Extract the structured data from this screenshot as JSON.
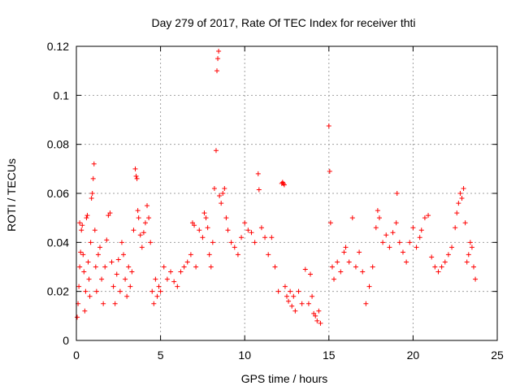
{
  "chart_data": {
    "type": "scatter",
    "title": "Day 279 of 2017, Rate Of TEC Index for receiver thti",
    "xlabel": "GPS time / hours",
    "ylabel": "ROTI / TECUs",
    "xlim": [
      0,
      25
    ],
    "ylim": [
      0,
      0.12
    ],
    "xticks": [
      0,
      5,
      10,
      15,
      20,
      25
    ],
    "xtick_labels": [
      "0",
      "5",
      "10",
      "15",
      "20",
      "25"
    ],
    "yticks": [
      0,
      0.02,
      0.04,
      0.06,
      0.08,
      0.1,
      0.12
    ],
    "ytick_labels": [
      "0",
      "0.02",
      "0.04",
      "0.06",
      "0.08",
      "0.1",
      "0.12"
    ],
    "grid": true,
    "marker": "+",
    "color": "#ff0000",
    "series": [
      {
        "name": "ROTI",
        "points": [
          [
            0.05,
            0.0095
          ],
          [
            0.1,
            0.015
          ],
          [
            0.15,
            0.022
          ],
          [
            0.2,
            0.03
          ],
          [
            0.25,
            0.036
          ],
          [
            0.3,
            0.045
          ],
          [
            0.35,
            0.047
          ],
          [
            0.2,
            0.048
          ],
          [
            0.4,
            0.035
          ],
          [
            0.45,
            0.028
          ],
          [
            0.5,
            0.012
          ],
          [
            0.55,
            0.02
          ],
          [
            0.6,
            0.05
          ],
          [
            0.65,
            0.051
          ],
          [
            0.7,
            0.032
          ],
          [
            0.75,
            0.025
          ],
          [
            0.8,
            0.018
          ],
          [
            0.85,
            0.04
          ],
          [
            0.9,
            0.058
          ],
          [
            0.95,
            0.06
          ],
          [
            1.0,
            0.066
          ],
          [
            1.05,
            0.072
          ],
          [
            1.1,
            0.045
          ],
          [
            1.15,
            0.03
          ],
          [
            1.2,
            0.02
          ],
          [
            1.3,
            0.035
          ],
          [
            1.4,
            0.038
          ],
          [
            1.5,
            0.025
          ],
          [
            1.6,
            0.015
          ],
          [
            1.7,
            0.03
          ],
          [
            1.8,
            0.041
          ],
          [
            1.9,
            0.051
          ],
          [
            2.0,
            0.052
          ],
          [
            2.1,
            0.032
          ],
          [
            2.2,
            0.022
          ],
          [
            2.3,
            0.015
          ],
          [
            2.4,
            0.027
          ],
          [
            2.5,
            0.033
          ],
          [
            2.6,
            0.02
          ],
          [
            2.7,
            0.04
          ],
          [
            2.8,
            0.035
          ],
          [
            2.9,
            0.025
          ],
          [
            3.0,
            0.018
          ],
          [
            3.1,
            0.03
          ],
          [
            3.2,
            0.022
          ],
          [
            3.3,
            0.028
          ],
          [
            3.4,
            0.045
          ],
          [
            3.5,
            0.07
          ],
          [
            3.55,
            0.067
          ],
          [
            3.6,
            0.066
          ],
          [
            3.65,
            0.053
          ],
          [
            3.7,
            0.05
          ],
          [
            3.8,
            0.043
          ],
          [
            3.9,
            0.038
          ],
          [
            4.0,
            0.044
          ],
          [
            4.1,
            0.048
          ],
          [
            4.2,
            0.055
          ],
          [
            4.3,
            0.05
          ],
          [
            4.4,
            0.04
          ],
          [
            4.5,
            0.02
          ],
          [
            4.6,
            0.015
          ],
          [
            4.7,
            0.025
          ],
          [
            4.8,
            0.018
          ],
          [
            4.9,
            0.022
          ],
          [
            5.0,
            0.02
          ],
          [
            5.2,
            0.03
          ],
          [
            5.4,
            0.025
          ],
          [
            5.6,
            0.028
          ],
          [
            5.8,
            0.024
          ],
          [
            6.0,
            0.022
          ],
          [
            6.2,
            0.028
          ],
          [
            6.4,
            0.03
          ],
          [
            6.6,
            0.032
          ],
          [
            6.8,
            0.035
          ],
          [
            6.9,
            0.048
          ],
          [
            7.0,
            0.047
          ],
          [
            7.1,
            0.03
          ],
          [
            7.3,
            0.045
          ],
          [
            7.5,
            0.042
          ],
          [
            7.6,
            0.052
          ],
          [
            7.7,
            0.05
          ],
          [
            7.8,
            0.046
          ],
          [
            7.9,
            0.035
          ],
          [
            8.0,
            0.03
          ],
          [
            8.1,
            0.04
          ],
          [
            8.2,
            0.062
          ],
          [
            8.3,
            0.0775
          ],
          [
            8.35,
            0.11
          ],
          [
            8.4,
            0.115
          ],
          [
            8.45,
            0.118
          ],
          [
            8.5,
            0.059
          ],
          [
            8.6,
            0.056
          ],
          [
            8.7,
            0.06
          ],
          [
            8.8,
            0.062
          ],
          [
            8.9,
            0.05
          ],
          [
            9.0,
            0.045
          ],
          [
            9.2,
            0.04
          ],
          [
            9.4,
            0.038
          ],
          [
            9.6,
            0.035
          ],
          [
            9.8,
            0.042
          ],
          [
            10.0,
            0.048
          ],
          [
            10.2,
            0.045
          ],
          [
            10.4,
            0.044
          ],
          [
            10.6,
            0.04
          ],
          [
            10.8,
            0.068
          ],
          [
            10.85,
            0.0615
          ],
          [
            11.0,
            0.046
          ],
          [
            11.2,
            0.042
          ],
          [
            11.4,
            0.035
          ],
          [
            11.6,
            0.042
          ],
          [
            11.8,
            0.03
          ],
          [
            12.0,
            0.02
          ],
          [
            12.2,
            0.064
          ],
          [
            12.25,
            0.0645
          ],
          [
            12.3,
            0.064
          ],
          [
            12.35,
            0.0635
          ],
          [
            12.4,
            0.022
          ],
          [
            12.5,
            0.018
          ],
          [
            12.6,
            0.016
          ],
          [
            12.7,
            0.02
          ],
          [
            12.8,
            0.014
          ],
          [
            12.9,
            0.018
          ],
          [
            13.0,
            0.012
          ],
          [
            13.2,
            0.02
          ],
          [
            13.4,
            0.015
          ],
          [
            13.6,
            0.029
          ],
          [
            13.8,
            0.015
          ],
          [
            13.9,
            0.027
          ],
          [
            14.0,
            0.018
          ],
          [
            14.1,
            0.011
          ],
          [
            14.2,
            0.01
          ],
          [
            14.3,
            0.008
          ],
          [
            14.4,
            0.012
          ],
          [
            14.5,
            0.007
          ],
          [
            15.0,
            0.0875
          ],
          [
            15.05,
            0.069
          ],
          [
            15.1,
            0.048
          ],
          [
            15.2,
            0.03
          ],
          [
            15.3,
            0.025
          ],
          [
            15.5,
            0.032
          ],
          [
            15.7,
            0.028
          ],
          [
            15.9,
            0.036
          ],
          [
            16.0,
            0.038
          ],
          [
            16.2,
            0.032
          ],
          [
            16.4,
            0.05
          ],
          [
            16.6,
            0.03
          ],
          [
            16.8,
            0.036
          ],
          [
            17.0,
            0.028
          ],
          [
            17.2,
            0.015
          ],
          [
            17.4,
            0.022
          ],
          [
            17.6,
            0.03
          ],
          [
            17.8,
            0.046
          ],
          [
            17.9,
            0.053
          ],
          [
            18.0,
            0.05
          ],
          [
            18.2,
            0.04
          ],
          [
            18.4,
            0.043
          ],
          [
            18.6,
            0.038
          ],
          [
            18.8,
            0.044
          ],
          [
            19.0,
            0.048
          ],
          [
            19.05,
            0.06
          ],
          [
            19.2,
            0.04
          ],
          [
            19.4,
            0.036
          ],
          [
            19.6,
            0.032
          ],
          [
            19.8,
            0.04
          ],
          [
            20.0,
            0.046
          ],
          [
            20.2,
            0.038
          ],
          [
            20.4,
            0.042
          ],
          [
            20.5,
            0.045
          ],
          [
            20.7,
            0.05
          ],
          [
            20.9,
            0.051
          ],
          [
            21.1,
            0.034
          ],
          [
            21.3,
            0.03
          ],
          [
            21.5,
            0.028
          ],
          [
            21.7,
            0.03
          ],
          [
            21.9,
            0.032
          ],
          [
            22.1,
            0.035
          ],
          [
            22.3,
            0.038
          ],
          [
            22.5,
            0.046
          ],
          [
            22.6,
            0.052
          ],
          [
            22.7,
            0.056
          ],
          [
            22.8,
            0.06
          ],
          [
            22.9,
            0.058
          ],
          [
            23.0,
            0.062
          ],
          [
            23.1,
            0.048
          ],
          [
            23.2,
            0.032
          ],
          [
            23.3,
            0.035
          ],
          [
            23.4,
            0.04
          ],
          [
            23.5,
            0.038
          ],
          [
            23.6,
            0.03
          ],
          [
            23.7,
            0.025
          ]
        ]
      }
    ]
  }
}
